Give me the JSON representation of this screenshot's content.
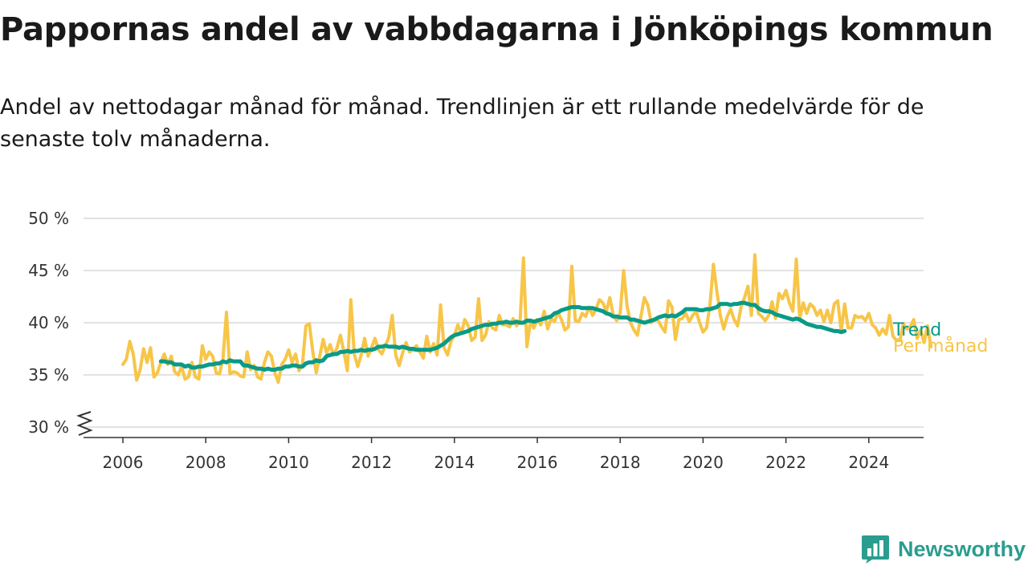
{
  "title": "Pappornas andel av vabbdagarna i Jönköpings kommun",
  "subtitle": "Andel av nettodagar månad för månad. Trendlinjen är ett rullande medelvärde för de senaste tolv månaderna.",
  "brand": {
    "name": "Newsworthy",
    "icon": "newsworthy-logo-icon"
  },
  "colors": {
    "monthly": "#f7c548",
    "trend": "#0a9a87",
    "grid": "#d9d9d9",
    "axis": "#333333"
  },
  "chart_data": {
    "type": "line",
    "title": "Pappornas andel av vabbdagarna i Jönköpings kommun",
    "ylim": [
      30,
      50
    ],
    "y_axis_break": true,
    "xlim": [
      2005.5,
      2025.2
    ],
    "yticks": [
      30,
      35,
      40,
      45,
      50
    ],
    "ytick_labels": [
      "30 %",
      "35 %",
      "40 %",
      "45 %",
      "50 %"
    ],
    "xticks": [
      2006,
      2008,
      2010,
      2012,
      2014,
      2016,
      2018,
      2020,
      2022,
      2024
    ],
    "xtick_labels": [
      "2006",
      "2008",
      "2010",
      "2012",
      "2014",
      "2016",
      "2018",
      "2020",
      "2022",
      "2024"
    ],
    "grid": "horizontal",
    "legend": "right-end labels",
    "series": [
      {
        "name": "Per månad",
        "key": "monthly",
        "start": "2006-01",
        "values": [
          36.0,
          36.5,
          38.2,
          37.0,
          34.5,
          35.5,
          37.5,
          36.2,
          37.6,
          34.8,
          35.2,
          36.2,
          37.0,
          36.0,
          36.8,
          35.3,
          35.0,
          35.8,
          34.6,
          34.8,
          36.2,
          34.8,
          34.6,
          37.8,
          36.5,
          37.2,
          36.8,
          35.2,
          35.1,
          36.6,
          41.0,
          35.1,
          35.3,
          35.2,
          34.9,
          34.8,
          37.2,
          35.5,
          35.9,
          34.8,
          34.6,
          36.2,
          37.2,
          36.8,
          35.2,
          34.3,
          36.0,
          36.5,
          37.4,
          36.2,
          37.0,
          35.4,
          36.0,
          39.7,
          39.9,
          37.2,
          35.2,
          36.8,
          38.4,
          37.1,
          37.9,
          36.9,
          37.6,
          38.8,
          37.2,
          35.4,
          42.2,
          37.0,
          35.8,
          36.9,
          38.5,
          36.8,
          37.6,
          38.5,
          37.4,
          37.0,
          37.8,
          38.6,
          40.7,
          36.9,
          35.9,
          37.1,
          38.1,
          37.2,
          37.4,
          37.8,
          37.2,
          36.6,
          38.7,
          37.2,
          38.0,
          36.9,
          41.7,
          37.6,
          36.9,
          38.2,
          38.8,
          39.8,
          39.0,
          40.3,
          39.7,
          38.3,
          38.6,
          42.3,
          38.3,
          38.8,
          40.1,
          39.5,
          39.3,
          40.7,
          39.8,
          39.8,
          39.6,
          40.4,
          39.7,
          40.1,
          46.2,
          37.7,
          40.1,
          39.5,
          40.3,
          39.8,
          41.1,
          39.4,
          40.4,
          40.1,
          41.0,
          40.3,
          39.3,
          39.6,
          45.4,
          40.2,
          40.1,
          40.9,
          40.6,
          41.5,
          40.7,
          41.3,
          42.2,
          41.9,
          41.1,
          42.4,
          40.7,
          40.2,
          40.9,
          45.0,
          41.6,
          40.0,
          39.3,
          38.8,
          40.6,
          42.4,
          41.7,
          40.0,
          40.4,
          40.2,
          39.6,
          39.1,
          42.1,
          41.5,
          38.4,
          40.3,
          40.4,
          40.9,
          40.1,
          40.7,
          41.1,
          40.0,
          39.1,
          39.5,
          41.7,
          45.6,
          43.0,
          40.7,
          39.4,
          40.6,
          41.3,
          40.3,
          39.7,
          41.5,
          42.4,
          43.5,
          40.7,
          46.5,
          40.9,
          40.6,
          40.2,
          40.7,
          42.0,
          40.4,
          42.8,
          42.3,
          43.1,
          41.9,
          41.1,
          46.1,
          40.4,
          41.9,
          40.9,
          41.8,
          41.5,
          40.7,
          41.2,
          40.1,
          41.2,
          40.0,
          41.8,
          42.1,
          39.2,
          41.8,
          39.5,
          39.5,
          40.7,
          40.5,
          40.6,
          40.2,
          40.9,
          39.8,
          39.5,
          38.8,
          39.4,
          38.9,
          40.7,
          38.7,
          38.3,
          38.3,
          39.9,
          39.4,
          39.6,
          40.3,
          38.5,
          39.3,
          38.1,
          39.7,
          37.7
        ]
      },
      {
        "name": "Trend",
        "key": "trend",
        "start": "2006-12",
        "values": [
          36.3,
          36.3,
          36.2,
          36.2,
          36.0,
          36.0,
          36.0,
          35.8,
          35.9,
          35.7,
          35.7,
          35.8,
          35.8,
          35.9,
          36.0,
          36.0,
          36.1,
          36.1,
          36.3,
          36.2,
          36.4,
          36.3,
          36.3,
          36.3,
          35.9,
          35.9,
          35.8,
          35.7,
          35.6,
          35.6,
          35.5,
          35.6,
          35.5,
          35.5,
          35.6,
          35.6,
          35.8,
          35.8,
          35.9,
          35.9,
          35.8,
          35.8,
          36.1,
          36.2,
          36.2,
          36.4,
          36.3,
          36.4,
          36.8,
          36.9,
          37.0,
          37.0,
          37.2,
          37.2,
          37.3,
          37.2,
          37.3,
          37.3,
          37.4,
          37.3,
          37.4,
          37.4,
          37.5,
          37.7,
          37.7,
          37.8,
          37.7,
          37.7,
          37.7,
          37.6,
          37.7,
          37.6,
          37.5,
          37.5,
          37.4,
          37.4,
          37.4,
          37.4,
          37.4,
          37.5,
          37.6,
          37.8,
          38.0,
          38.3,
          38.6,
          38.8,
          38.9,
          39.0,
          39.1,
          39.2,
          39.4,
          39.5,
          39.6,
          39.7,
          39.8,
          39.8,
          39.9,
          39.9,
          40.0,
          40.0,
          40.1,
          40.0,
          40.0,
          40.1,
          40.0,
          40.0,
          40.2,
          40.2,
          40.1,
          40.2,
          40.3,
          40.4,
          40.5,
          40.6,
          40.9,
          41.0,
          41.2,
          41.3,
          41.4,
          41.5,
          41.5,
          41.5,
          41.4,
          41.4,
          41.4,
          41.4,
          41.3,
          41.2,
          41.1,
          40.9,
          40.8,
          40.6,
          40.6,
          40.5,
          40.5,
          40.5,
          40.3,
          40.3,
          40.2,
          40.1,
          40.0,
          40.1,
          40.2,
          40.3,
          40.5,
          40.6,
          40.7,
          40.6,
          40.7,
          40.6,
          40.8,
          41.0,
          41.3,
          41.3,
          41.3,
          41.3,
          41.2,
          41.2,
          41.3,
          41.3,
          41.4,
          41.5,
          41.8,
          41.8,
          41.8,
          41.7,
          41.8,
          41.8,
          41.9,
          41.9,
          41.8,
          41.7,
          41.7,
          41.4,
          41.2,
          41.1,
          41.1,
          41.0,
          40.8,
          40.7,
          40.6,
          40.5,
          40.4,
          40.3,
          40.4,
          40.3,
          40.1,
          39.9,
          39.8,
          39.7,
          39.6,
          39.6,
          39.5,
          39.4,
          39.3,
          39.2,
          39.2,
          39.1,
          39.2
        ]
      }
    ]
  }
}
